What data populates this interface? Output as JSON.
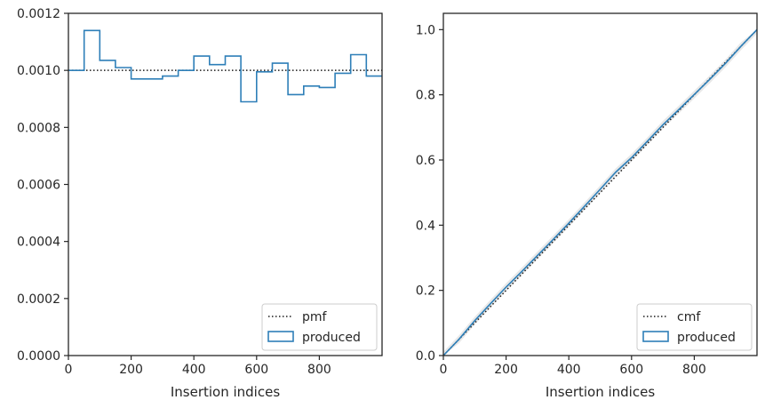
{
  "colors": {
    "produced": "#2e7fb8",
    "reference": "#1a1a1a",
    "band": "#d9d9d9",
    "axes": "#262626"
  },
  "chart_data": [
    {
      "type": "histogram",
      "title": "",
      "xlabel": "Insertion indices",
      "ylabel": "",
      "xlim": [
        0,
        1000
      ],
      "ylim": [
        0,
        0.0012
      ],
      "x_ticks": [
        0,
        200,
        400,
        600,
        800
      ],
      "x_tick_labels": [
        "0",
        "200",
        "400",
        "600",
        "800"
      ],
      "y_ticks": [
        0,
        0.0002,
        0.0004,
        0.0006,
        0.0008,
        0.001,
        0.0012
      ],
      "y_tick_labels": [
        "0.0000",
        "0.0002",
        "0.0004",
        "0.0006",
        "0.0008",
        "0.0010",
        "0.0012"
      ],
      "legend_position": "lower-right",
      "bin_edges": [
        0,
        50,
        100,
        150,
        200,
        250,
        300,
        350,
        400,
        450,
        500,
        550,
        600,
        650,
        700,
        750,
        800,
        850,
        900,
        950,
        1000
      ],
      "series": [
        {
          "name": "pmf",
          "style": "dotted",
          "values": [
            0.001,
            0.001
          ],
          "x": [
            0,
            1000
          ]
        },
        {
          "name": "produced",
          "style": "step",
          "values": [
            0.001,
            0.00114,
            0.001035,
            0.00101,
            0.00097,
            0.00097,
            0.00098,
            0.001,
            0.00105,
            0.00102,
            0.00105,
            0.00089,
            0.000995,
            0.001025,
            0.000915,
            0.000945,
            0.00094,
            0.00099,
            0.001055,
            0.00098
          ]
        }
      ]
    },
    {
      "type": "line",
      "title": "",
      "xlabel": "Insertion indices",
      "ylabel": "",
      "xlim": [
        0,
        1000
      ],
      "ylim": [
        0,
        1.05
      ],
      "x_ticks": [
        0,
        200,
        400,
        600,
        800
      ],
      "x_tick_labels": [
        "0",
        "200",
        "400",
        "600",
        "800"
      ],
      "y_ticks": [
        0,
        0.2,
        0.4,
        0.6,
        0.8,
        1.0
      ],
      "y_tick_labels": [
        "0.0",
        "0.2",
        "0.4",
        "0.6",
        "0.8",
        "1.0"
      ],
      "legend_position": "lower-right",
      "series": [
        {
          "name": "cmf",
          "style": "dotted",
          "x": [
            0,
            1000
          ],
          "values": [
            0,
            1.0
          ]
        },
        {
          "name": "produced",
          "style": "step",
          "x": [
            0,
            50,
            100,
            150,
            200,
            250,
            300,
            350,
            400,
            450,
            500,
            550,
            600,
            650,
            700,
            750,
            800,
            850,
            900,
            950,
            1000
          ],
          "values": [
            0,
            0.05,
            0.107,
            0.159,
            0.21,
            0.258,
            0.307,
            0.356,
            0.406,
            0.458,
            0.51,
            0.563,
            0.607,
            0.657,
            0.708,
            0.754,
            0.801,
            0.848,
            0.897,
            0.95,
            1.0
          ]
        }
      ]
    }
  ]
}
